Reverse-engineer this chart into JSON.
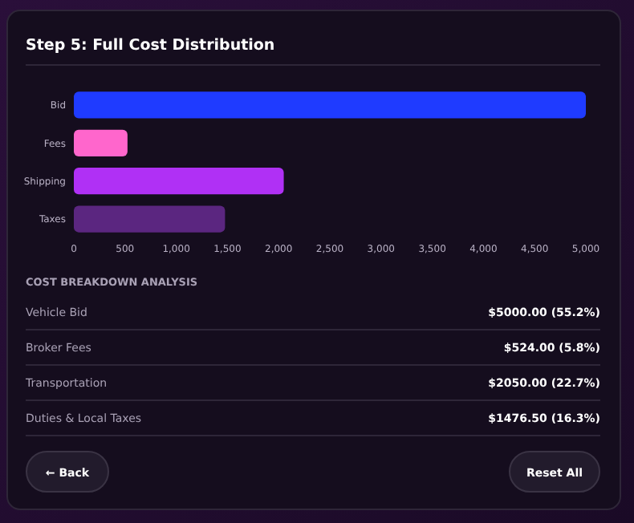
{
  "chart_data": [
    {
      "type": "bar",
      "orientation": "horizontal",
      "title": "Step 5: Full Cost Distribution",
      "categories": [
        "Bid",
        "Fees",
        "Shipping",
        "Taxes"
      ],
      "values": [
        5000,
        524,
        2050,
        1476.5
      ],
      "colors": [
        "#1f3bff",
        "#ff66cc",
        "#b030f5",
        "#5b2680"
      ],
      "xlim": [
        0,
        5000
      ],
      "xticks": [
        0,
        500,
        {
          "value": 1000,
          "label": "1,000"
        },
        {
          "value": 1500,
          "label": "1,500"
        },
        {
          "value": 2000,
          "label": "2,000"
        },
        {
          "value": 2500,
          "label": "2,500"
        },
        {
          "value": 3000,
          "label": "3,000"
        },
        {
          "value": 3500,
          "label": "3,500"
        },
        {
          "value": 4000,
          "label": "4,000"
        },
        {
          "value": 4500,
          "label": "4,500"
        },
        {
          "value": 5000,
          "label": "5,000"
        }
      ],
      "grid": false
    },
    {
      "type": "other",
      "title": "COST BREAKDOWN ANALYSIS",
      "annotations": [
        "Vehicle Bid",
        "$5000.00 (55.2%)",
        "Broker Fees",
        "$524.00 (5.8%)",
        "Transportation",
        "$2050.00 (22.7%)",
        "Duties & Local Taxes",
        "$1476.50 (16.3%)",
        "← Back",
        "Reset All"
      ]
    }
  ]
}
